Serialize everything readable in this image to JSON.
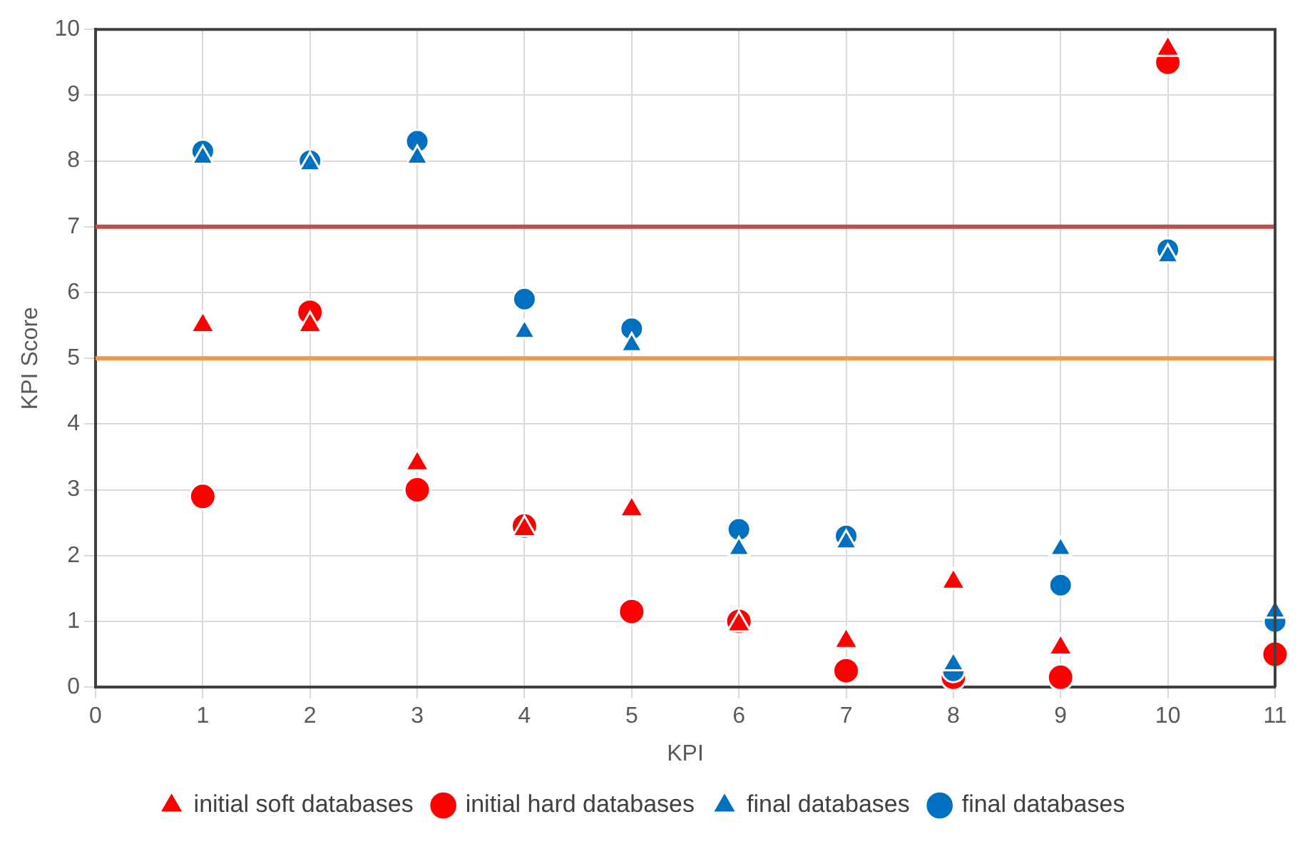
{
  "chart_data": {
    "type": "scatter",
    "xlabel": "KPI",
    "ylabel": "KPI Score",
    "x": [
      1,
      2,
      3,
      4,
      5,
      6,
      7,
      8,
      9,
      10,
      11
    ],
    "xlim": [
      0,
      11
    ],
    "xticks": [
      0,
      1,
      2,
      3,
      4,
      5,
      6,
      7,
      8,
      9,
      10,
      11
    ],
    "ylim": [
      0,
      10
    ],
    "yticks": [
      0,
      1,
      2,
      3,
      4,
      5,
      6,
      7,
      8,
      9,
      10
    ],
    "grid": true,
    "legend": "bottom",
    "series": [
      {
        "name": "initial soft databases",
        "color": "#ff0000",
        "marker": "triangle",
        "values": [
          5.5,
          5.5,
          3.4,
          2.4,
          2.7,
          0.95,
          0.7,
          1.6,
          0.6,
          9.7,
          null
        ]
      },
      {
        "name": "initial hard databases",
        "color": "#ff0000",
        "marker": "circle",
        "values": [
          2.9,
          5.7,
          3.0,
          2.45,
          1.15,
          1.0,
          0.25,
          0.15,
          0.15,
          9.5,
          0.5
        ]
      },
      {
        "name": "final databases",
        "color": "#0070c0",
        "marker": "triangle",
        "values": [
          8.05,
          7.95,
          8.05,
          5.4,
          5.2,
          2.1,
          2.2,
          0.35,
          2.1,
          6.55,
          1.15
        ]
      },
      {
        "name": "final databases",
        "color": "#0070c0",
        "marker": "circle",
        "values": [
          8.15,
          8.0,
          8.3,
          5.9,
          5.45,
          2.4,
          2.3,
          0.25,
          1.55,
          6.65,
          1.0
        ]
      }
    ],
    "ref_lines": [
      {
        "axis": "y",
        "value": 7,
        "color": "#c0504d"
      },
      {
        "axis": "y",
        "value": 5,
        "color": "#f79646"
      }
    ]
  }
}
